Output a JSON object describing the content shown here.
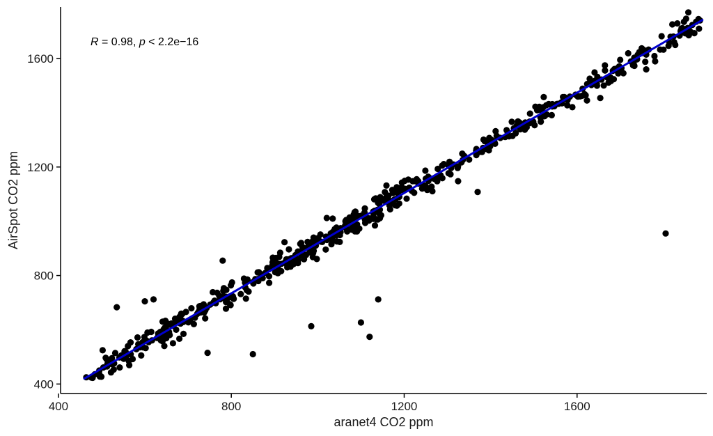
{
  "chart_data": {
    "type": "scatter",
    "title": "",
    "xlabel": "aranet4 CO2 ppm",
    "ylabel": "AirSpot CO2 ppm",
    "xlim": [
      405,
      1900
    ],
    "ylim": [
      365,
      1790
    ],
    "xticks": [
      400,
      800,
      1200,
      1600
    ],
    "yticks": [
      400,
      800,
      1200,
      1600
    ],
    "xtick_labels": [
      "400",
      "800",
      "1200",
      "1600"
    ],
    "ytick_labels": [
      "400",
      "800",
      "1200",
      "1600"
    ],
    "grid": false,
    "annotation": {
      "r_symbol": "R",
      "r_text": " = 0.98, ",
      "p_symbol": "p",
      "p_text": " < 2.2e−16"
    },
    "point_color": "#000000",
    "line_color": "#0000cc",
    "regression_line": {
      "x": [
        460,
        1890
      ],
      "y": [
        420,
        1742
      ]
    },
    "outliers": {
      "x": [
        535,
        600,
        620,
        645,
        665,
        745,
        780,
        850,
        985,
        1100,
        1120,
        1140,
        1370,
        1805,
        1670,
        1760
      ],
      "y": [
        683,
        705,
        712,
        540,
        550,
        515,
        855,
        510,
        613,
        627,
        574,
        712,
        1108,
        955,
        1530,
        1560
      ]
    },
    "n_main_points": 560,
    "band_sd": 22
  }
}
